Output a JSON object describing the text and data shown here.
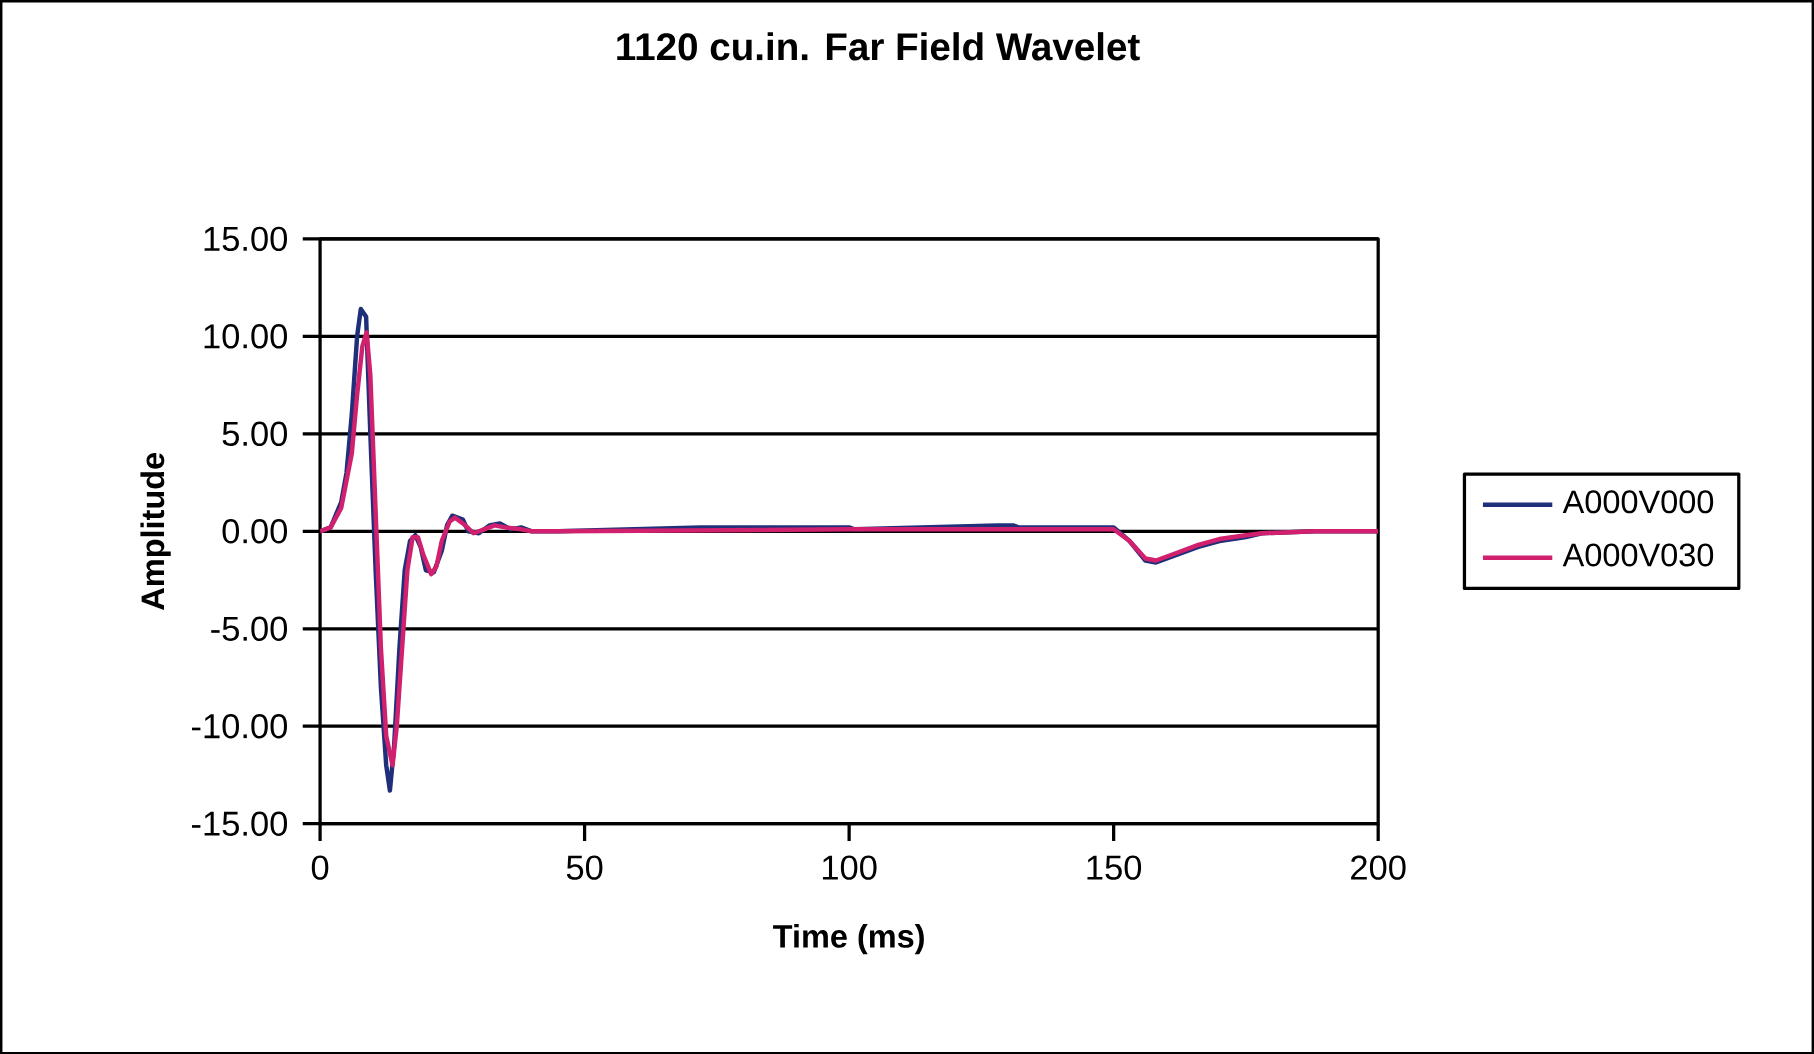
{
  "chart_data": {
    "type": "line",
    "title": "1120 cu.in.  Far Field Wavelet",
    "xlabel": "Time (ms)",
    "ylabel": "Amplitude",
    "xlim": [
      0,
      200
    ],
    "xticks": [
      0,
      50,
      100,
      150,
      200
    ],
    "ylim": [
      -15,
      15
    ],
    "yticks": [
      {
        "value": -15,
        "label": "-15.00"
      },
      {
        "value": -10,
        "label": "-10.00"
      },
      {
        "value": -5,
        "label": "-5.00"
      },
      {
        "value": 0,
        "label": "0.00"
      },
      {
        "value": 5,
        "label": "5.00"
      },
      {
        "value": 10,
        "label": "10.00"
      },
      {
        "value": 15,
        "label": "15.00"
      }
    ],
    "grid": "y",
    "legend": "right",
    "series": [
      {
        "name": "A000V000",
        "color": "#1f2f7a",
        "x": [
          0,
          2,
          4,
          5,
          6,
          7,
          7.7,
          8.7,
          9.5,
          10.5,
          11.5,
          12.5,
          13.2,
          14,
          15,
          16,
          17,
          18,
          19,
          20,
          21.5,
          23,
          24,
          25,
          27,
          28,
          30,
          32,
          34,
          36,
          38,
          40,
          45,
          72,
          100,
          101,
          128,
          131,
          132,
          150,
          153,
          156,
          158,
          162,
          166,
          170,
          175,
          178,
          188,
          200
        ],
        "values": [
          0,
          0.2,
          1.5,
          3,
          6,
          10,
          11.4,
          11,
          5,
          -2,
          -8,
          -12,
          -13.3,
          -11,
          -6,
          -2,
          -0.5,
          -0.2,
          -0.8,
          -2,
          -2.1,
          -1,
          0.3,
          0.8,
          0.6,
          0,
          -0.1,
          0.3,
          0.4,
          0.1,
          0.2,
          0,
          0,
          0.2,
          0.2,
          0.1,
          0.3,
          0.3,
          0.2,
          0.2,
          -0.5,
          -1.5,
          -1.6,
          -1.2,
          -0.8,
          -0.5,
          -0.3,
          -0.1,
          0,
          0
        ]
      },
      {
        "name": "A000V030",
        "color": "#d0206e",
        "x": [
          0,
          2,
          4,
          6,
          7,
          8,
          8.8,
          9.5,
          10.5,
          11.5,
          12.5,
          13.7,
          14.5,
          15.5,
          16.5,
          17.5,
          18.5,
          19.5,
          21,
          22,
          23,
          24.5,
          25.5,
          27,
          29,
          31,
          33,
          35,
          38,
          40,
          45,
          100,
          150,
          153,
          156,
          158,
          162,
          166,
          170,
          175,
          178,
          188,
          200
        ],
        "values": [
          0,
          0.2,
          1.2,
          4,
          7,
          9.5,
          10.2,
          8,
          1,
          -6,
          -10.5,
          -12,
          -10,
          -6,
          -2,
          -0.3,
          -0.3,
          -1.2,
          -2.2,
          -1.8,
          -0.5,
          0.5,
          0.7,
          0.4,
          -0.1,
          0.1,
          0.3,
          0.2,
          0.1,
          0,
          0,
          0.1,
          0.1,
          -0.5,
          -1.4,
          -1.5,
          -1.1,
          -0.7,
          -0.4,
          -0.2,
          -0.1,
          0,
          0
        ]
      }
    ]
  }
}
